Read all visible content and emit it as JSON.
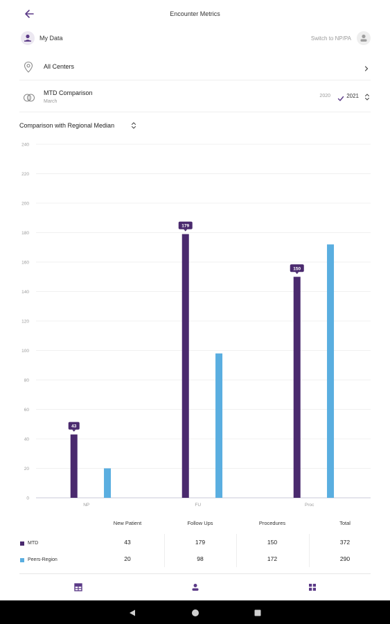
{
  "header": {
    "title": "Encounter Metrics",
    "back_icon": "arrow-left-icon"
  },
  "profile": {
    "label": "My Data",
    "switch_label": "Switch to NP/PA"
  },
  "centers": {
    "label": "All Centers"
  },
  "comparison": {
    "title": "MTD Comparison",
    "subtitle": "March",
    "year_options": [
      "2020",
      "2021"
    ],
    "selected_year": "2021"
  },
  "chart_section": {
    "title": "Comparison with Regional Median"
  },
  "colors": {
    "mtd": "#4a2a6e",
    "peers": "#5aaee0",
    "accent": "#5b3a87"
  },
  "chart_data": {
    "type": "bar",
    "categories": [
      "NP",
      "FU",
      "Proc"
    ],
    "series": [
      {
        "name": "MTD",
        "values": [
          43,
          179,
          150
        ]
      },
      {
        "name": "Peers-Region",
        "values": [
          20,
          98,
          172
        ]
      }
    ],
    "data_labels_series": "MTD",
    "ylim": [
      0,
      240
    ],
    "yticks": [
      0,
      20,
      40,
      60,
      80,
      100,
      120,
      140,
      160,
      180,
      200,
      220,
      240
    ],
    "grid": true
  },
  "table": {
    "headers": [
      "New Patient",
      "Follow Ups",
      "Procedures",
      "Total"
    ],
    "rows": [
      {
        "label": "MTD",
        "values": [
          "43",
          "179",
          "150",
          "372"
        ]
      },
      {
        "label": "Peers-Region",
        "values": [
          "20",
          "98",
          "172",
          "290"
        ]
      }
    ]
  },
  "bottom_nav": [
    "table-icon",
    "person-icon",
    "grid-icon"
  ],
  "system_nav": [
    "back-triangle-icon",
    "home-circle-icon",
    "recents-square-icon"
  ]
}
